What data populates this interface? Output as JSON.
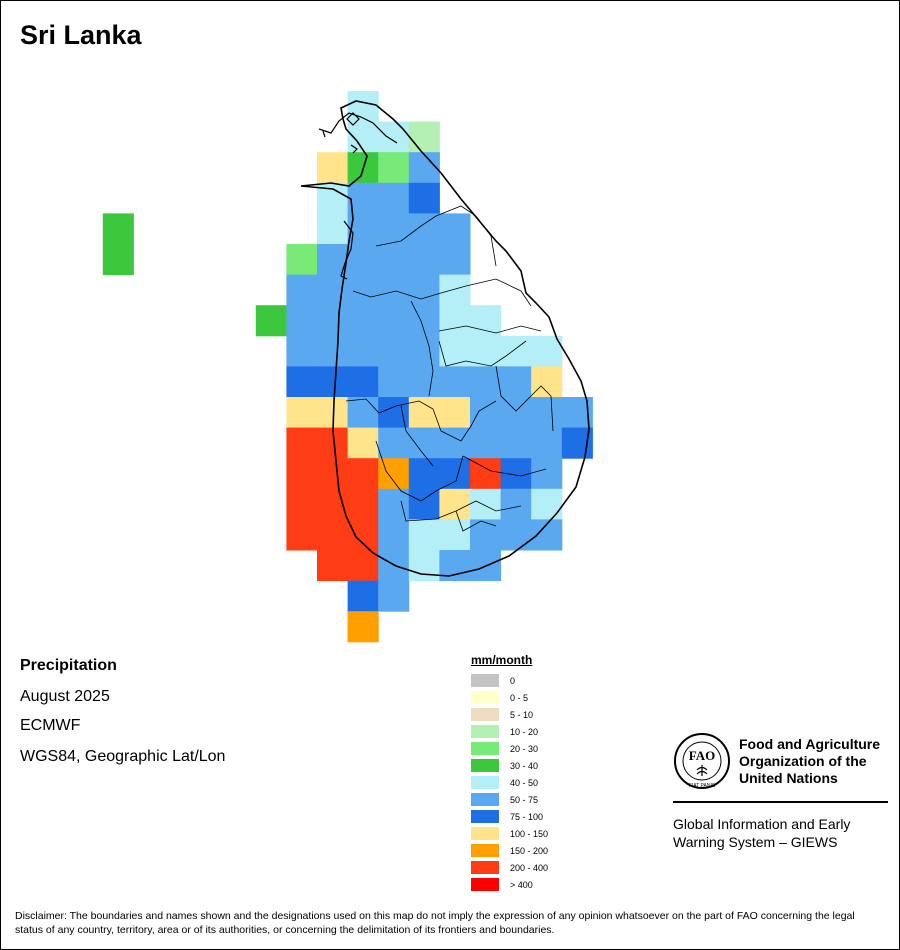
{
  "title": "Sri Lanka",
  "info": {
    "variable": "Precipitation",
    "period": "August 2025",
    "model": "ECMWF",
    "projection": "WGS84, Geographic Lat/Lon"
  },
  "legend": {
    "title": "mm/month",
    "items": [
      {
        "label": "0",
        "color": "#c4c4c4"
      },
      {
        "label": "0 - 5",
        "color": "#ffffc8"
      },
      {
        "label": "5 - 10",
        "color": "#ecdcc0"
      },
      {
        "label": "10 - 20",
        "color": "#b4f0b4"
      },
      {
        "label": "20 - 30",
        "color": "#78ea78"
      },
      {
        "label": "30 - 40",
        "color": "#3cc83c"
      },
      {
        "label": "40 - 50",
        "color": "#b4eef6"
      },
      {
        "label": "50 - 75",
        "color": "#5aa8f0"
      },
      {
        "label": "75 - 100",
        "color": "#1e6ee6"
      },
      {
        "label": "100 - 150",
        "color": "#ffe48c"
      },
      {
        "label": "150 - 200",
        "color": "#ffa000"
      },
      {
        "label": "200 - 400",
        "color": "#ff3c14"
      },
      {
        "label": "> 400",
        "color": "#ff0000"
      }
    ]
  },
  "grid": [
    "...........G..................",
    "...........GGD................",
    "..........5FEL................",
    "..........GLLM................",
    "...F......GLLLL...............",
    "...F.....ELLLLL...............",
    ".........LLLLLG...............",
    "........FLLLLLGG..............",
    ".........LLLLLGGGG............",
    ".........MMMLLLLL5............",
    ".........55LMH5LLLL...........",
    ".........RR5LLLLLLM...........",
    ".........RRRTMMRML............",
    ".........RRRLM5GLG............",
    ".........RRRLGGLLL............",
    "..........RRLGLL..............",
    "...........ML.................",
    "...........T.................."
  ],
  "grid_legend": {
    "D": "10 - 20",
    "E": "20 - 30",
    "F": "30 - 40",
    "G": "40 - 50",
    "L": "50 - 75",
    "M": "75 - 100",
    "5": "100 - 150",
    "H": "100 - 150",
    "T": "150 - 200",
    "R": "200 - 400"
  },
  "organization": {
    "name_lines": [
      "Food and Agriculture",
      "Organization of the",
      "United Nations"
    ],
    "logo_letters": "FAO",
    "logo_motto": "FIAT PANIS",
    "system_lines": [
      "Global Information and Early",
      "Warning System – GIEWS"
    ]
  },
  "disclaimer": "Disclaimer: The boundaries and names shown and the designations used on this map do not imply the expression of any opinion whatsoever on the part of FAO concerning the legal status of any country, territory, area or of its authorities, or concerning the delimitation of its frontiers and boundaries."
}
